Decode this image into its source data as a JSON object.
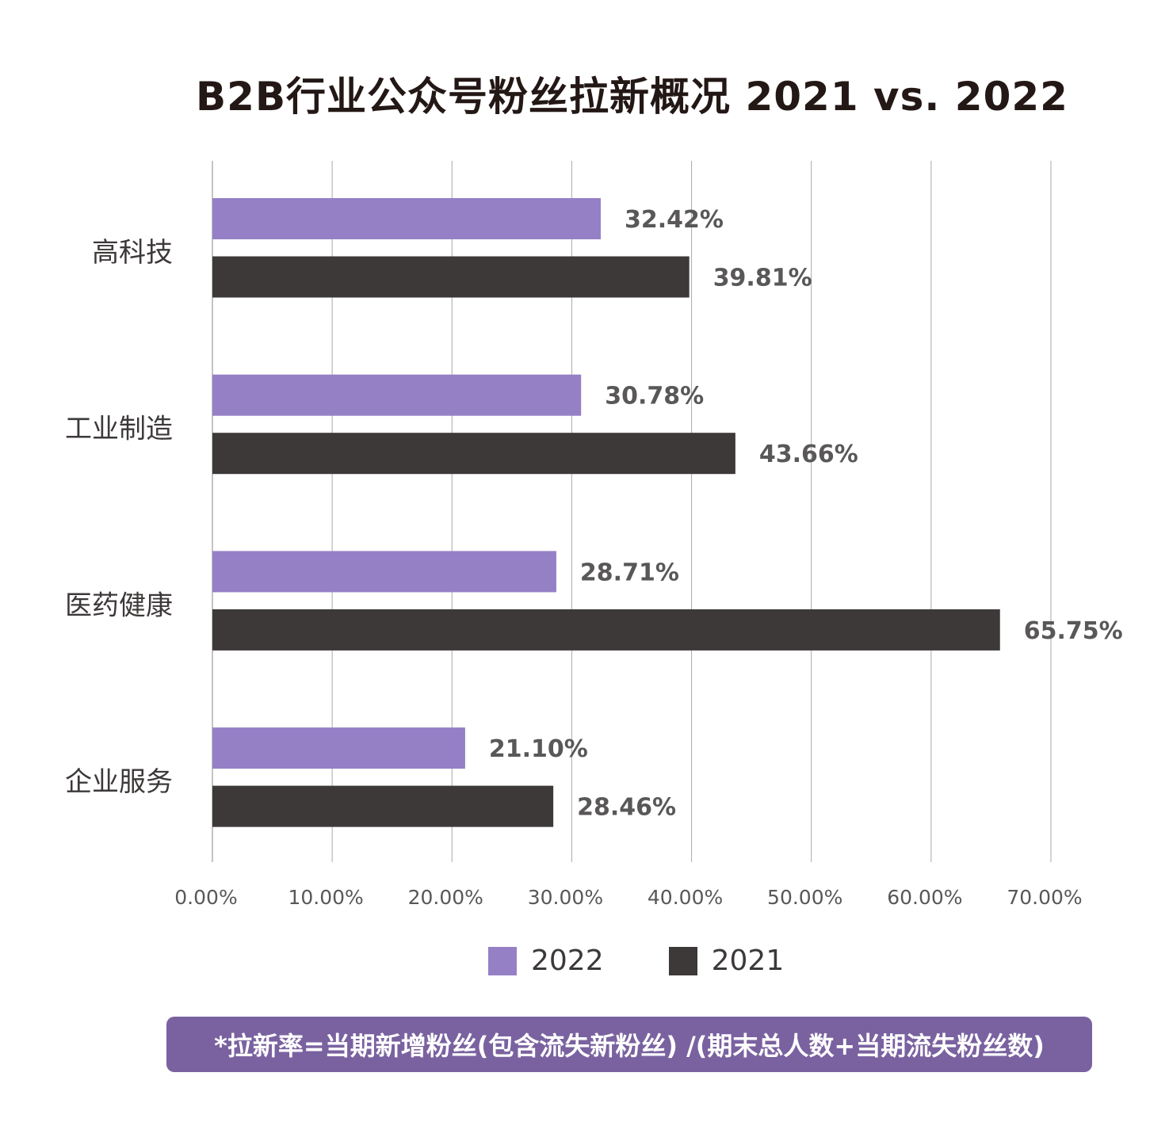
{
  "chart_data": {
    "type": "bar",
    "orientation": "horizontal",
    "title": "B2B行业公众号粉丝拉新概况 2021 vs. 2022",
    "categories": [
      "高科技",
      "工业制造",
      "医药健康",
      "企业服务"
    ],
    "series": [
      {
        "name": "2022",
        "color": "#9580c6",
        "values": [
          32.42,
          30.78,
          28.71,
          21.1
        ],
        "labels": [
          "32.42%",
          "30.78%",
          "28.71%",
          "21.10%"
        ]
      },
      {
        "name": "2021",
        "color": "#3d3939",
        "values": [
          39.81,
          43.66,
          65.75,
          28.46
        ],
        "labels": [
          "39.81%",
          "43.66%",
          "65.75%",
          "28.46%"
        ]
      }
    ],
    "xlim": [
      0,
      70
    ],
    "x_ticks": [
      "0.00%",
      "10.00%",
      "20.00%",
      "30.00%",
      "40.00%",
      "50.00%",
      "60.00%",
      "70.00%"
    ],
    "grid": "vertical",
    "legend": "bottom",
    "xlabel": "",
    "ylabel": ""
  },
  "footnote": "*拉新率=当期新增粉丝(包含流失新粉丝) /(期末总人数+当期流失粉丝数)"
}
